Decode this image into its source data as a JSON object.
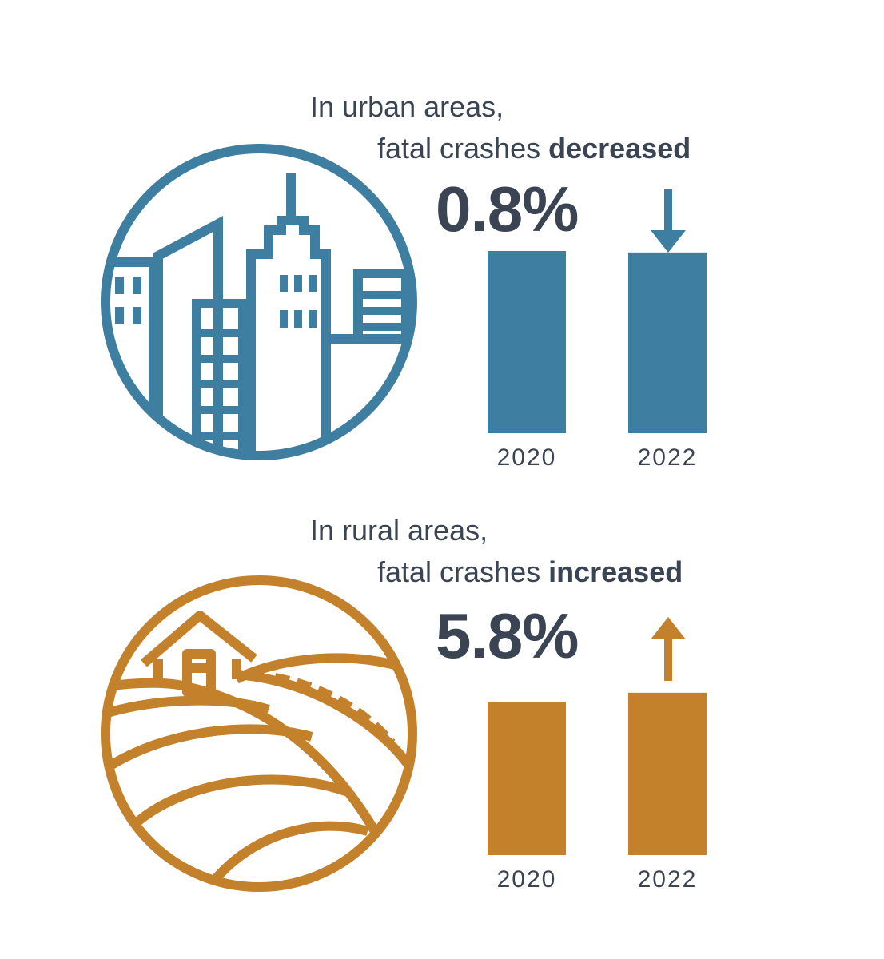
{
  "colors": {
    "urban": "#3e7ea0",
    "rural": "#c4812b",
    "text": "#3a4452"
  },
  "chart_data": [
    {
      "type": "bar",
      "title_line1": "In urban areas,",
      "title_line2_prefix": "fatal crashes ",
      "title_emphasis": "decreased",
      "change_label": "0.8%",
      "direction": "down",
      "categories": [
        "2020",
        "2022"
      ],
      "values": [
        100,
        99.2
      ],
      "icon": "city-skyline-icon"
    },
    {
      "type": "bar",
      "title_line1": "In rural areas,",
      "title_line2_prefix": "fatal crashes ",
      "title_emphasis": "increased",
      "change_label": "5.8%",
      "direction": "up",
      "categories": [
        "2020",
        "2022"
      ],
      "values": [
        100,
        105.8
      ],
      "icon": "farmhouse-fields-icon"
    }
  ]
}
